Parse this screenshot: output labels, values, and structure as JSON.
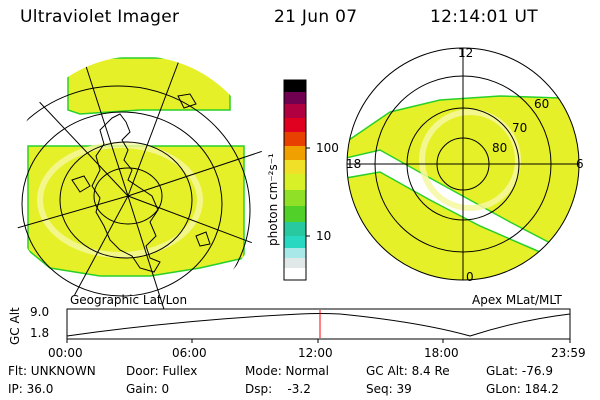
{
  "header": {
    "title": "Ultraviolet Imager",
    "date": "21 Jun 07",
    "time": "12:14:01 UT"
  },
  "left_panel": {
    "label": "Geographic Lat/Lon"
  },
  "right_panel": {
    "label": "Apex MLat/MLT",
    "mlt_labels": [
      "12",
      "18",
      "6",
      "0"
    ],
    "mlat_labels": [
      "60",
      "70",
      "80"
    ]
  },
  "colorbar": {
    "unit": "photon cm⁻²s⁻¹",
    "ticks": [
      "100",
      "10"
    ],
    "scale": "log",
    "colors": [
      "#e6e6e6",
      "#28e0c8",
      "#28c828",
      "#c8e628",
      "#e6e628",
      "#f0a000",
      "#e00000",
      "#a00028",
      "#400040",
      "#000000"
    ]
  },
  "altitude_strip": {
    "axis_label": "GC Alt",
    "y_ticks": [
      "9.0",
      "1.8"
    ],
    "x_ticks": [
      "00:00",
      "06:00",
      "12:00",
      "18:00",
      "23:59"
    ],
    "current_marker_hour": 12.23,
    "marker_color": "#ff0000"
  },
  "info": {
    "row1": {
      "flt": "Flt: UNKNOWN",
      "door": "Door: Fullex",
      "mode": "Mode: Normal",
      "gcalt": "GC Alt: 8.4 Re",
      "glat": "GLat: -76.9"
    },
    "row2": {
      "ip": "IP: 36.0",
      "gain": "Gain:  0",
      "dsp": "Dsp:    -3.2",
      "seq": "Seq: 39",
      "glon": "GLon: 184.2"
    }
  }
}
